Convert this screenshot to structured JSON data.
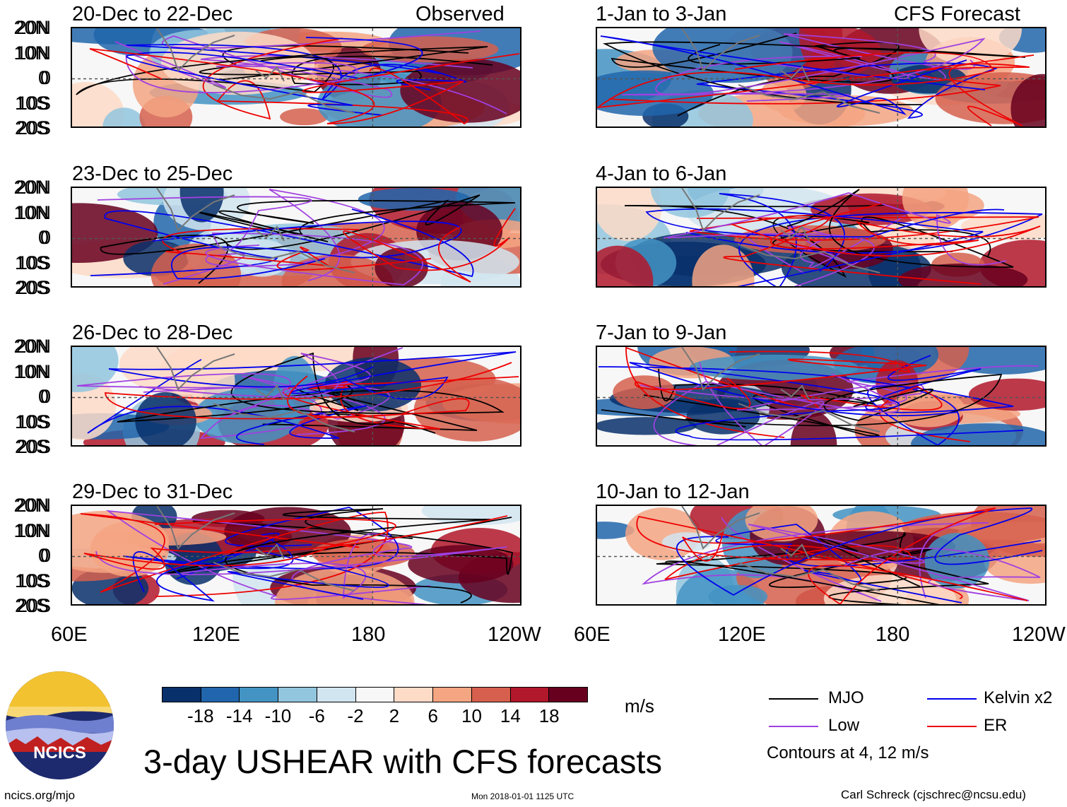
{
  "observed_label": "Observed",
  "forecast_label": "CFS Forecast",
  "panels_left": [
    {
      "title": "20-Dec to 22-Dec"
    },
    {
      "title": "23-Dec to 25-Dec"
    },
    {
      "title": "26-Dec to 28-Dec"
    },
    {
      "title": "29-Dec to 31-Dec"
    }
  ],
  "panels_right": [
    {
      "title": "1-Jan to 3-Jan"
    },
    {
      "title": "4-Jan to 6-Jan"
    },
    {
      "title": "7-Jan to 9-Jan"
    },
    {
      "title": "10-Jan to 12-Jan"
    }
  ],
  "lat_labels": [
    "20N",
    "10N",
    "0",
    "10S",
    "20S"
  ],
  "lon_labels_left": [
    "60E",
    "120E",
    "180",
    "120W"
  ],
  "lon_labels_right": [
    "60E",
    "120E",
    "180",
    "120W"
  ],
  "colorbar": {
    "colors": [
      "#08306b",
      "#2166ac",
      "#4393c3",
      "#92c5de",
      "#d1e5f0",
      "#f7f7f7",
      "#fddbc7",
      "#f4a582",
      "#d6604d",
      "#b2182b",
      "#67001f"
    ],
    "labels": [
      "-18",
      "-14",
      "-10",
      "-6",
      "-2",
      "2",
      "6",
      "10",
      "14",
      "18"
    ],
    "units": "m/s"
  },
  "main_title": "3-day USHEAR with CFS forecasts",
  "legend": {
    "items": [
      {
        "label": "MJO",
        "color": "#000000"
      },
      {
        "label": "Low",
        "color": "#a040e0"
      },
      {
        "label": "Kelvin x2",
        "color": "#0000ee"
      },
      {
        "label": "ER",
        "color": "#ee0000"
      }
    ],
    "contours_note": "Contours at 4, 12 m/s"
  },
  "logo_text": "NCICS",
  "footer": {
    "left": "ncics.org/mjo",
    "center": "Mon 2018-01-01 1125 UTC",
    "right": "Carl Schreck (cjschrec@ncsu.edu)"
  }
}
